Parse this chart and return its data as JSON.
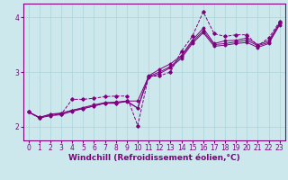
{
  "background_color": "#cce8ec",
  "grid_color": "#aad4d8",
  "line_color": "#800080",
  "spine_color": "#800080",
  "xlim": [
    -0.5,
    23.5
  ],
  "ylim": [
    1.75,
    4.25
  ],
  "yticks": [
    2,
    3,
    4
  ],
  "xticks": [
    0,
    1,
    2,
    3,
    4,
    5,
    6,
    7,
    8,
    9,
    10,
    11,
    12,
    13,
    14,
    15,
    16,
    17,
    18,
    19,
    20,
    21,
    22,
    23
  ],
  "xlabel": "Windchill (Refroidissement éolien,°C)",
  "xlabel_fontsize": 6.5,
  "tick_fontsize": 5.5,
  "series1_x": [
    0,
    1,
    2,
    3,
    4,
    5,
    6,
    7,
    8,
    9,
    10,
    11,
    12,
    13,
    14,
    15,
    16,
    17,
    18,
    19,
    20,
    21,
    22,
    23
  ],
  "series1_y": [
    2.27,
    2.17,
    2.23,
    2.25,
    2.3,
    2.33,
    2.38,
    2.43,
    2.43,
    2.47,
    2.34,
    2.93,
    3.05,
    3.15,
    3.3,
    3.58,
    3.8,
    3.52,
    3.57,
    3.58,
    3.62,
    3.5,
    3.57,
    3.9
  ],
  "series2_x": [
    0,
    1,
    2,
    3,
    4,
    5,
    6,
    7,
    8,
    9,
    10,
    11,
    12,
    13,
    14,
    15,
    16,
    17,
    18,
    19,
    20,
    21,
    22,
    23
  ],
  "series2_y": [
    2.27,
    2.17,
    2.22,
    2.24,
    2.3,
    2.35,
    2.4,
    2.44,
    2.45,
    2.47,
    2.47,
    2.92,
    3.0,
    3.1,
    3.28,
    3.55,
    3.75,
    3.5,
    3.52,
    3.55,
    3.58,
    3.48,
    3.54,
    3.88
  ],
  "series3_x": [
    0,
    1,
    2,
    3,
    4,
    5,
    6,
    7,
    8,
    9,
    10,
    11,
    12,
    13,
    14,
    15,
    16,
    17,
    18,
    19,
    20,
    21,
    22,
    23
  ],
  "series3_y": [
    2.27,
    2.16,
    2.2,
    2.22,
    2.28,
    2.33,
    2.38,
    2.43,
    2.43,
    2.46,
    2.34,
    2.9,
    2.97,
    3.08,
    3.25,
    3.52,
    3.72,
    3.47,
    3.49,
    3.52,
    3.54,
    3.45,
    3.52,
    3.86
  ],
  "series4_x": [
    0,
    1,
    2,
    3,
    4,
    5,
    6,
    7,
    8,
    9,
    10,
    11,
    12,
    13,
    14,
    15,
    16,
    17,
    18,
    19,
    20,
    21,
    22,
    23
  ],
  "series4_y": [
    2.27,
    2.16,
    2.21,
    2.23,
    2.5,
    2.5,
    2.52,
    2.55,
    2.56,
    2.56,
    2.02,
    2.92,
    2.93,
    3.0,
    3.38,
    3.65,
    4.1,
    3.7,
    3.65,
    3.68,
    3.68,
    3.48,
    3.62,
    3.92
  ]
}
